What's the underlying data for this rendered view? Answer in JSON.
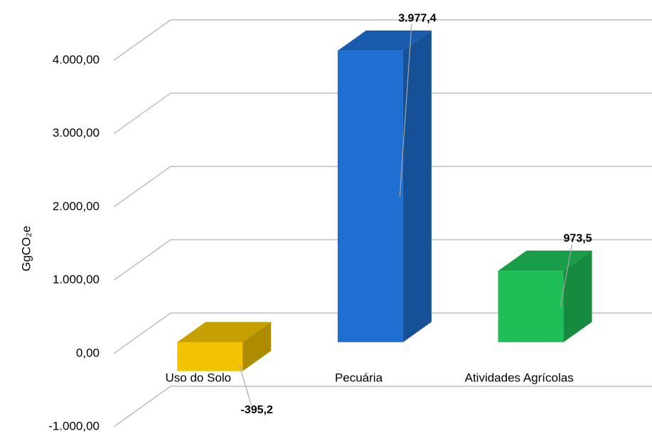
{
  "chart_data": {
    "type": "bar3d",
    "y_label": "GgCO₂e",
    "categories": [
      "Uso do Solo",
      "Pecuária",
      "Atividades Agrícolas"
    ],
    "values": [
      -395.2,
      3977.4,
      973.5
    ],
    "value_labels": [
      "-395,2",
      "3.977,4",
      "973,5"
    ],
    "colors": [
      "#f2c200",
      "#1f6fd2",
      "#1fbf58"
    ],
    "ylim": [
      -1000,
      4000
    ],
    "yticks": [
      {
        "value": -1000,
        "label": "-1.000,00"
      },
      {
        "value": 0,
        "label": "0,00"
      },
      {
        "value": 1000,
        "label": "1.000,00"
      },
      {
        "value": 2000,
        "label": "2.000,00"
      },
      {
        "value": 3000,
        "label": "3.000,00"
      },
      {
        "value": 4000,
        "label": "4.000,00"
      }
    ],
    "grid": true
  }
}
